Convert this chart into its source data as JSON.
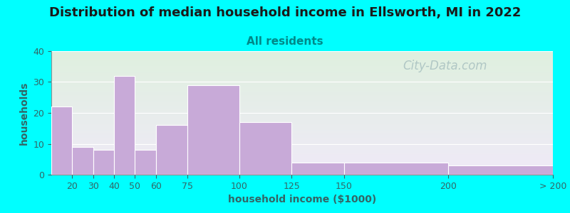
{
  "title": "Distribution of median household income in Ellsworth, MI in 2022",
  "subtitle": "All residents",
  "xlabel": "household income ($1000)",
  "ylabel": "households",
  "background_color": "#00FFFF",
  "plot_bg_gradient_top": "#dff0df",
  "plot_bg_gradient_bottom": "#f0eaf8",
  "bar_color": "#c8aad8",
  "bar_edge_color": "#ffffff",
  "bin_edges": [
    10,
    20,
    30,
    40,
    50,
    60,
    75,
    100,
    125,
    150,
    200,
    250
  ],
  "bin_labels": [
    "20",
    "30",
    "40",
    "50",
    "60",
    "75",
    "100",
    "125",
    "150",
    "200",
    "> 200"
  ],
  "values": [
    22,
    9,
    8,
    32,
    8,
    16,
    29,
    17,
    4,
    4,
    3
  ],
  "xlim": [
    10,
    250
  ],
  "ylim": [
    0,
    40
  ],
  "yticks": [
    0,
    10,
    20,
    30,
    40
  ],
  "xtick_positions": [
    20,
    30,
    40,
    50,
    60,
    75,
    100,
    125,
    150,
    200
  ],
  "xtick_labels": [
    "20",
    "30",
    "40",
    "50",
    "60",
    "75",
    "100",
    "125",
    "150",
    "200"
  ],
  "title_fontsize": 13,
  "subtitle_fontsize": 11,
  "title_color": "#1a1a1a",
  "subtitle_color": "#008888",
  "label_fontsize": 10,
  "tick_fontsize": 9,
  "tick_color": "#336666",
  "watermark_text": "City-Data.com",
  "watermark_color": "#a8c0c0",
  "watermark_fontsize": 12
}
